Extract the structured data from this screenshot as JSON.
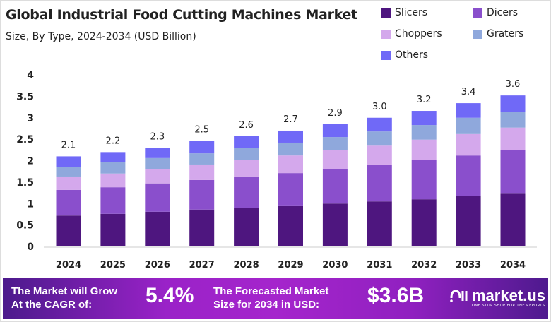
{
  "chart_data": {
    "type": "bar",
    "stacked": true,
    "title": "Global Industrial Food Cutting Machines Market",
    "subtitle": "Size, By Type, 2024-2034 (USD Billion)",
    "categories": [
      "2024",
      "2025",
      "2026",
      "2027",
      "2028",
      "2029",
      "2030",
      "2031",
      "2032",
      "2033",
      "2034"
    ],
    "series": [
      {
        "name": "Slicers",
        "color": "#4e167f",
        "values": [
          0.72,
          0.76,
          0.81,
          0.86,
          0.89,
          0.94,
          1.0,
          1.05,
          1.1,
          1.17,
          1.23
        ]
      },
      {
        "name": "Dicers",
        "color": "#8a4fcc",
        "values": [
          0.6,
          0.62,
          0.66,
          0.69,
          0.74,
          0.77,
          0.81,
          0.86,
          0.91,
          0.95,
          1.01
        ]
      },
      {
        "name": "Choppers",
        "color": "#d4a8ec",
        "values": [
          0.31,
          0.32,
          0.34,
          0.36,
          0.38,
          0.41,
          0.43,
          0.44,
          0.48,
          0.5,
          0.53
        ]
      },
      {
        "name": "Graters",
        "color": "#8fa8dc",
        "values": [
          0.23,
          0.26,
          0.25,
          0.26,
          0.28,
          0.3,
          0.31,
          0.33,
          0.34,
          0.38,
          0.37
        ]
      },
      {
        "name": "Others",
        "color": "#7069f7",
        "values": [
          0.24,
          0.24,
          0.24,
          0.29,
          0.28,
          0.28,
          0.3,
          0.32,
          0.33,
          0.34,
          0.38
        ]
      }
    ],
    "totals": [
      "2.1",
      "2.2",
      "2.3",
      "2.5",
      "2.6",
      "2.7",
      "2.9",
      "3.0",
      "3.2",
      "3.4",
      "3.6"
    ],
    "yticks": [
      "0",
      "0.5",
      "1",
      "1.5",
      "2",
      "2.5",
      "3",
      "3.5",
      "4"
    ],
    "ylim": [
      0,
      4
    ],
    "grid": false,
    "legend": "top-right"
  },
  "footer": {
    "cagr_label_1": "The Market will Grow",
    "cagr_label_2": "At the CAGR of:",
    "cagr": "5.4%",
    "forecast_label_1": "The Forecasted Market",
    "forecast_label_2": "Size for 2034 in USD:",
    "forecast": "$3.6B",
    "logo": "market.us",
    "tagline": "ONE STOP SHOP FOR THE REPORTS"
  }
}
